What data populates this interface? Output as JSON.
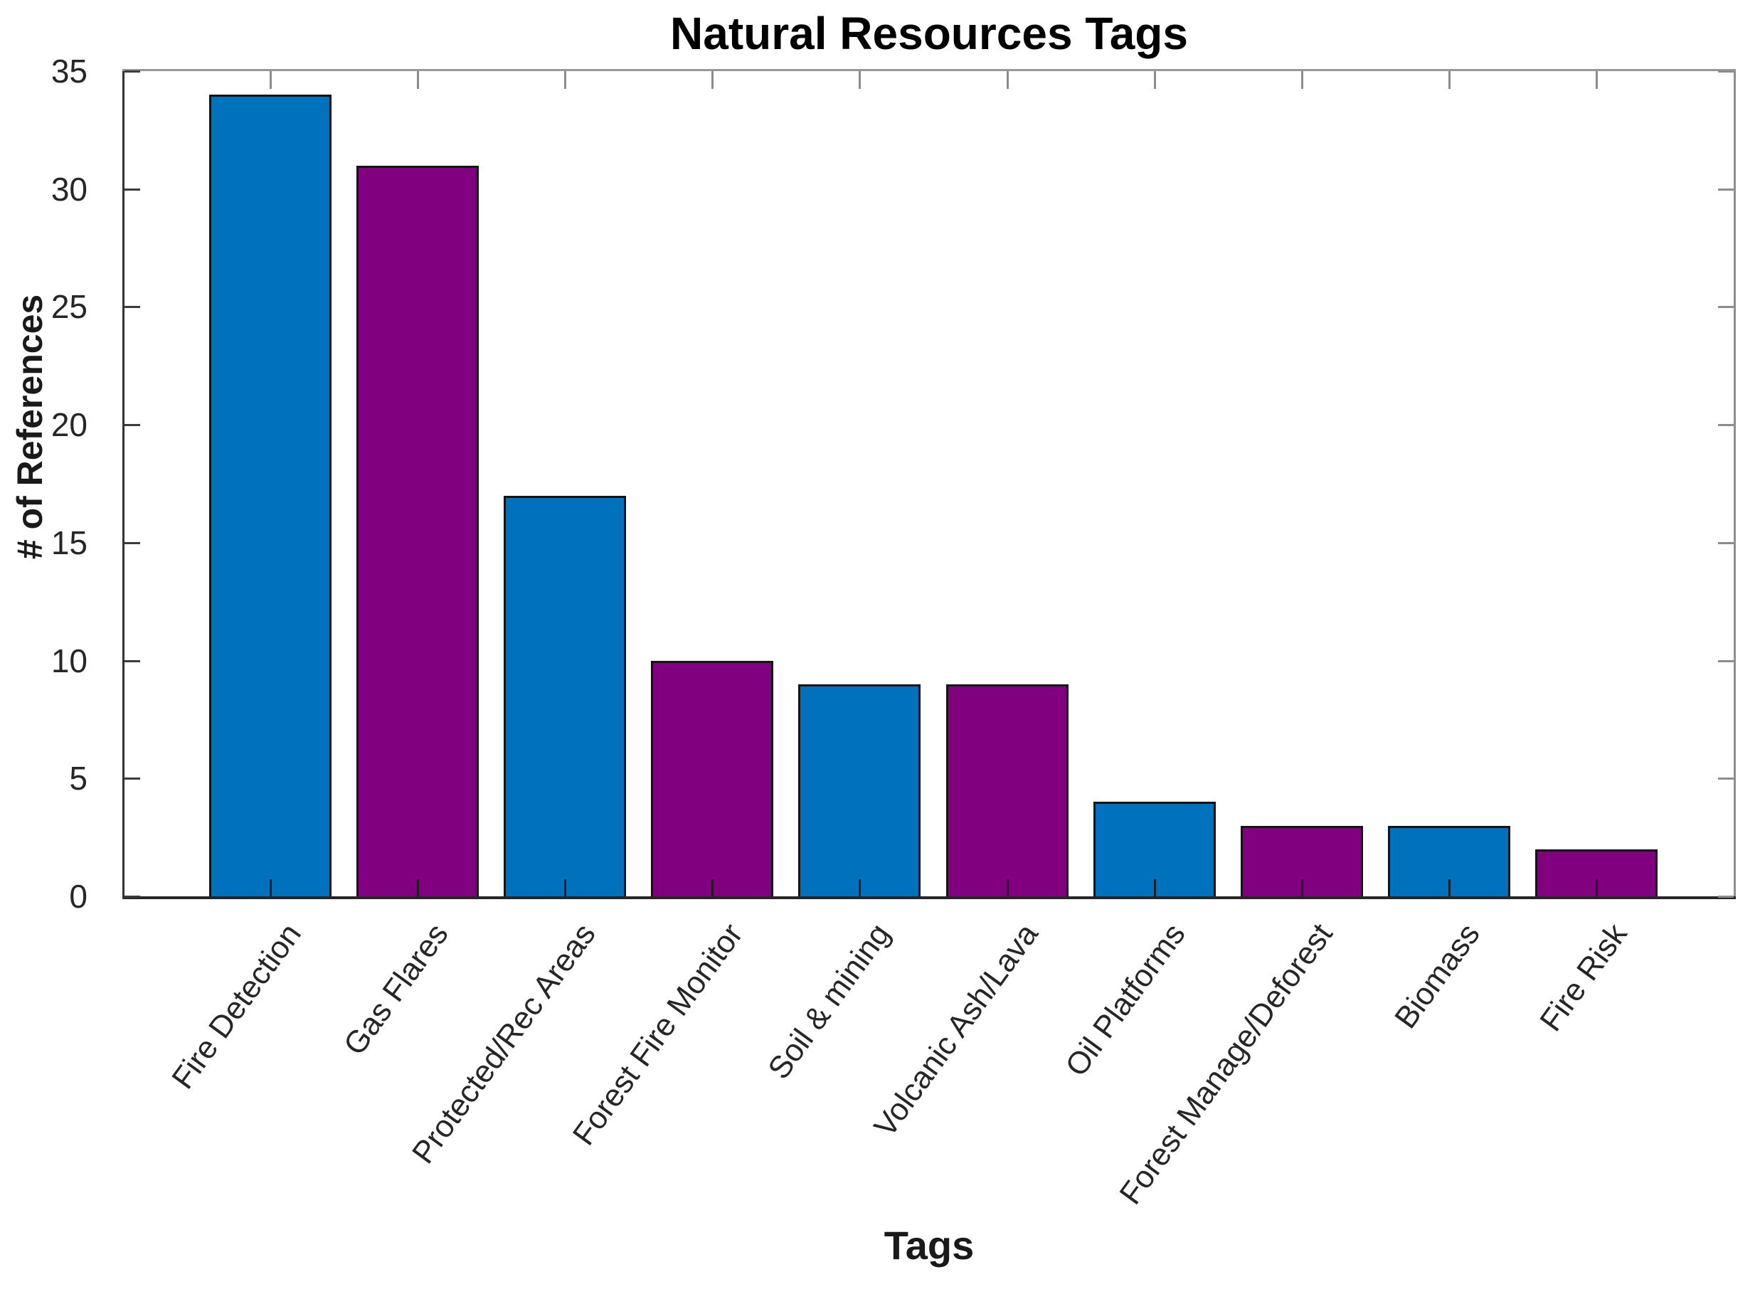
{
  "chart_data": {
    "type": "bar",
    "title": "Natural Resources Tags",
    "xlabel": "Tags",
    "ylabel": "# of References",
    "categories": [
      "Fire Detection",
      "Gas Flares",
      "Protected/Rec Areas",
      "Forest Fire Monitor",
      "Soil & mining",
      "Volcanic Ash/Lava",
      "Oil Platforms",
      "Forest Manage/Deforest",
      "Biomass",
      "Fire Risk"
    ],
    "values": [
      34,
      31,
      17,
      10,
      9,
      9,
      4,
      3,
      3,
      2
    ],
    "bar_colors": [
      "#0072BD",
      "#800080",
      "#0072BD",
      "#800080",
      "#0072BD",
      "#800080",
      "#0072BD",
      "#800080",
      "#0072BD",
      "#800080"
    ],
    "bar_edge_color": "#141414",
    "ylim": [
      0,
      35
    ],
    "yticks": [
      0,
      5,
      10,
      15,
      20,
      25,
      30,
      35
    ],
    "grid": "off",
    "legend": "none",
    "axis_box": "on",
    "tick_direction": "in"
  }
}
